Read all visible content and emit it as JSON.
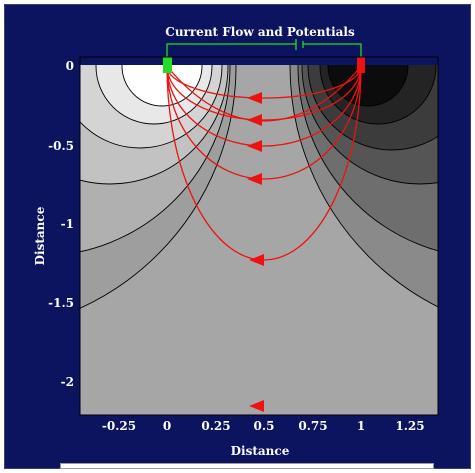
{
  "title": "Current Flow and Potentials",
  "xlabel": "Distance",
  "ylabel": "Distance",
  "x_ticks": [
    "-0.25",
    "0",
    "0.25",
    "0.5",
    "0.75",
    "1",
    "1.25"
  ],
  "y_ticks": [
    "0",
    "-0.5",
    "-1",
    "-1.5",
    "-2"
  ],
  "colors": {
    "background": "#0c1460",
    "source_electrode": "#22dd22",
    "sink_electrode": "#ee1111",
    "current_lines": "#ee1111",
    "circuit_wire": "#22dd22",
    "equipotential_lines": "#000000"
  }
}
